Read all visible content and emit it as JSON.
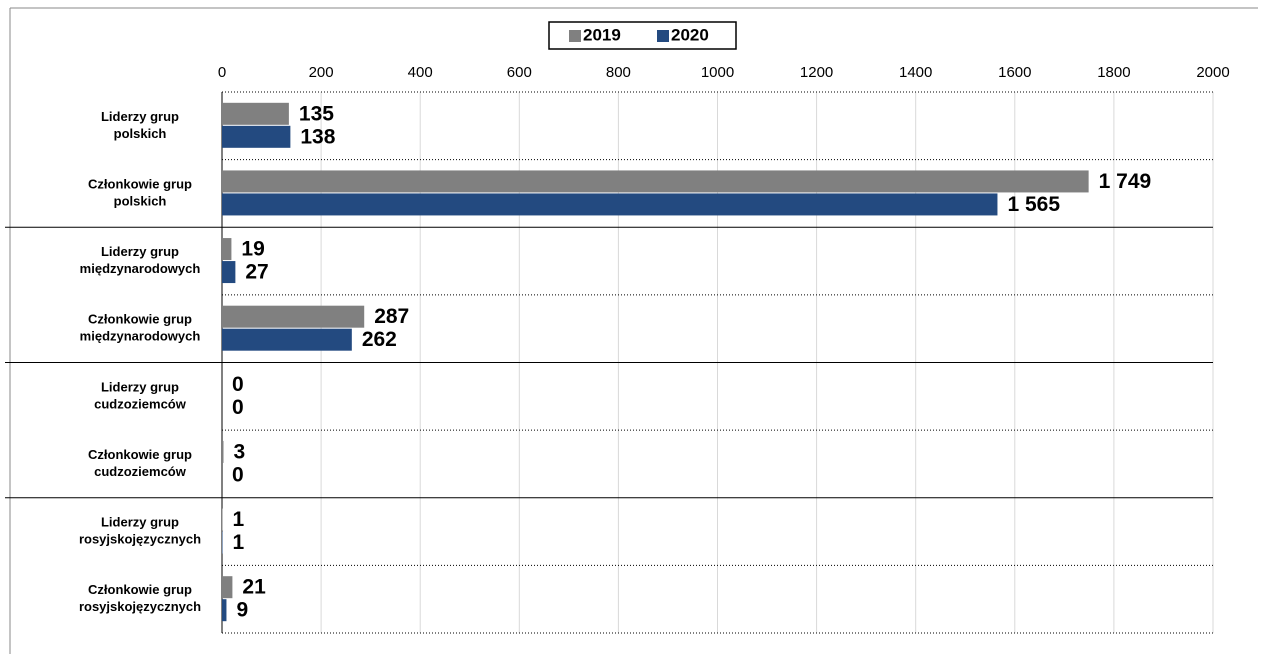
{
  "chart_data": {
    "type": "hbar",
    "categories": [
      "Liderzy grup polskich",
      "Członkowie grup polskich",
      "Liderzy grup międzynarodowych",
      "Członkowie grup międzynarodowych",
      "Liderzy grup cudzoziemców",
      "Członkowie grup cudzoziemców",
      "Liderzy grup rosyjskojęzycznych",
      "Członkowie grup rosyjskojęzycznych"
    ],
    "series": [
      {
        "name": "2019",
        "color": "#808080",
        "values": [
          135,
          1749,
          19,
          287,
          0,
          3,
          1,
          21
        ],
        "value_labels": [
          "135",
          "1 749",
          "19",
          "287",
          "0",
          "3",
          "1",
          "21"
        ]
      },
      {
        "name": "2020",
        "color": "#234a80",
        "values": [
          138,
          1565,
          27,
          262,
          0,
          0,
          1,
          9
        ],
        "value_labels": [
          "138",
          "1 565",
          "27",
          "262",
          "0",
          "0",
          "1",
          "9"
        ]
      }
    ],
    "xlim": [
      0,
      2000
    ],
    "xticks": [
      0,
      200,
      400,
      600,
      800,
      1000,
      1200,
      1400,
      1600,
      1800,
      2000
    ],
    "grid": true,
    "legend": "top"
  }
}
